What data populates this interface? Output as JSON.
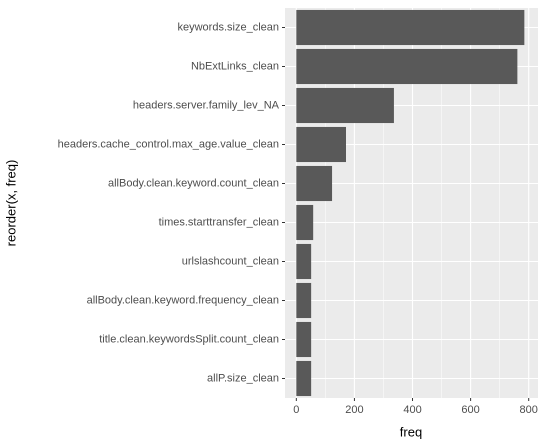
{
  "chart_data": {
    "type": "bar",
    "orientation": "horizontal",
    "xlabel": "freq",
    "ylabel": "reorder(x, freq)",
    "categories": [
      "keywords.size_clean",
      "NbExtLinks_clean",
      "headers.server.family_lev_NA",
      "headers.cache_control.max_age.value_clean",
      "allBody.clean.keyword.count_clean",
      "times.starttransfer_clean",
      "urlslashcount_clean",
      "allBody.clean.keyword.frequency_clean",
      "title.clean.keywordsSplit.count_clean",
      "allP.size_clean"
    ],
    "values": [
      785,
      761,
      336,
      171,
      123,
      58,
      51,
      51,
      51,
      51
    ],
    "color": "#595959",
    "xlim": [
      -39,
      832
    ],
    "xticks": [
      0,
      200,
      400,
      600,
      800
    ],
    "grid": true
  }
}
